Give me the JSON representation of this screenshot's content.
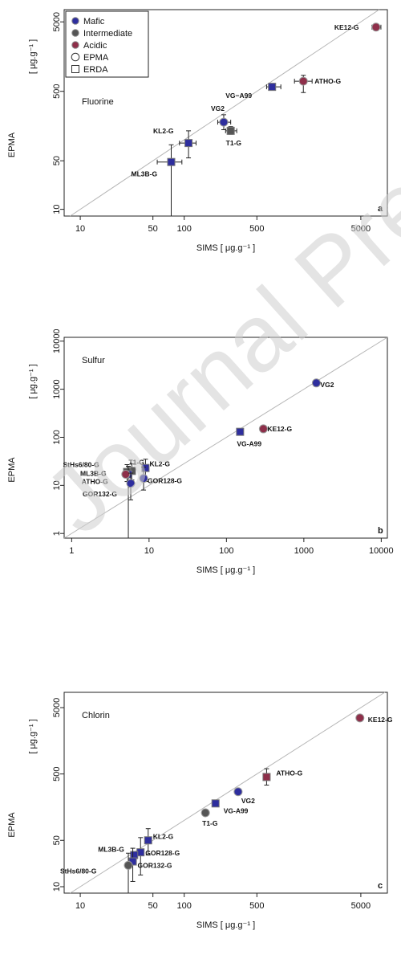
{
  "watermark": "Journal Pre-proof",
  "colors": {
    "mafic": "#2e2e9e",
    "intermediate": "#555555",
    "acidic": "#8e2f4a",
    "one_to_one_line": "#b5b5b5"
  },
  "legend": {
    "items": [
      {
        "label": "Mafic",
        "marker": "filled-circle",
        "color": "#2e2e9e"
      },
      {
        "label": "Intermediate",
        "marker": "filled-circle",
        "color": "#555555"
      },
      {
        "label": "Acidic",
        "marker": "filled-circle",
        "color": "#8e2f4a"
      },
      {
        "label": "EPMA",
        "marker": "open-circle",
        "color": "#333333"
      },
      {
        "label": "ERDA",
        "marker": "open-square",
        "color": "#333333"
      }
    ]
  },
  "chart_data": [
    {
      "type": "scatter",
      "title": "Fluorine",
      "panel_label": "a",
      "xlabel": "SIMS [ μg.g⁻¹ ]",
      "ylabel": "EPMA",
      "ylabel_unit": "[ μg.g⁻¹ ]",
      "xscale": "log",
      "yscale": "log",
      "xlim": [
        7,
        9000
      ],
      "ylim": [
        8,
        7500
      ],
      "xticks": [
        10,
        50,
        100,
        500,
        5000
      ],
      "yticks": [
        10,
        50,
        500,
        5000
      ],
      "reference_line": "1:1",
      "points": [
        {
          "label": "KE12-G",
          "x": 7000,
          "y": 4200,
          "group": "acidic",
          "method": "EPMA",
          "xerr": [
            6400,
            7800
          ],
          "yerr": [
            4000,
            4400
          ]
        },
        {
          "label": "ATHO-G",
          "x": 1400,
          "y": 700,
          "group": "acidic",
          "method": "EPMA",
          "xerr": [
            1150,
            1700
          ],
          "yerr": [
            480,
            850
          ]
        },
        {
          "label": "VG−A99",
          "x": 700,
          "y": 580,
          "group": "mafic",
          "method": "ERDA",
          "xerr": [
            620,
            850
          ],
          "yerr": [
            560,
            600
          ]
        },
        {
          "label": "VG2",
          "x": 240,
          "y": 180,
          "group": "mafic",
          "method": "EPMA",
          "xerr": [
            210,
            280
          ],
          "yerr": [
            140,
            230
          ]
        },
        {
          "label": "T1-G",
          "x": 280,
          "y": 135,
          "group": "intermediate",
          "method": "ERDA",
          "xerr": [
            250,
            320
          ],
          "yerr": [
            120,
            155
          ]
        },
        {
          "label": "KL2-G",
          "x": 110,
          "y": 90,
          "group": "mafic",
          "method": "ERDA",
          "xerr": [
            90,
            130
          ],
          "yerr": [
            55,
            135
          ]
        },
        {
          "label": "ML3B-G",
          "x": 75,
          "y": 48,
          "group": "mafic",
          "method": "ERDA",
          "xerr": [
            55,
            95
          ],
          "yerr": [
            8,
            85
          ]
        }
      ]
    },
    {
      "type": "scatter",
      "title": "Sulfur",
      "panel_label": "b",
      "xlabel": "SIMS [ μg.g⁻¹ ]",
      "ylabel": "EPMA",
      "ylabel_unit": "[ μg.g⁻¹ ]",
      "xscale": "log",
      "yscale": "log",
      "xlim": [
        0.8,
        12000
      ],
      "ylim": [
        0.8,
        12000
      ],
      "xticks": [
        1,
        10,
        100,
        1000,
        10000
      ],
      "yticks": [
        1,
        10,
        100,
        1000,
        10000
      ],
      "reference_line": "1:1",
      "points": [
        {
          "label": "VG2",
          "x": 1450,
          "y": 1350,
          "group": "mafic",
          "method": "EPMA"
        },
        {
          "label": "KE12-G",
          "x": 300,
          "y": 150,
          "group": "acidic",
          "method": "EPMA"
        },
        {
          "label": "VG-A99",
          "x": 150,
          "y": 130,
          "group": "mafic",
          "method": "ERDA"
        },
        {
          "label": "KL2-G",
          "x": 9,
          "y": 23,
          "group": "mafic",
          "method": "ERDA",
          "yerr": [
            12,
            35
          ]
        },
        {
          "label": "GOR128-G",
          "x": 8.5,
          "y": 14,
          "group": "mafic",
          "method": "EPMA",
          "yerr": [
            8,
            24
          ]
        },
        {
          "label": "T1-G",
          "x": 6,
          "y": 20,
          "group": "intermediate",
          "method": "ERDA",
          "yerr": [
            13,
            28
          ]
        },
        {
          "label": "StHs6/80-G",
          "x": 5.2,
          "y": 19,
          "group": "intermediate",
          "method": "ERDA",
          "yerr": [
            12,
            27
          ]
        },
        {
          "label": "ML3B-G",
          "x": 5.4,
          "y": 17,
          "group": "mafic",
          "method": "ERDA",
          "yerr": [
            0.8,
            25
          ]
        },
        {
          "label": "ATHO-G",
          "x": 5.0,
          "y": 17,
          "group": "acidic",
          "method": "EPMA"
        },
        {
          "label": "GOR132-G",
          "x": 5.8,
          "y": 11,
          "group": "mafic",
          "method": "EPMA",
          "yerr": [
            5,
            18
          ]
        }
      ]
    },
    {
      "type": "scatter",
      "title": "Chlorin",
      "panel_label": "c",
      "xlabel": "SIMS [ μg.g⁻¹ ]",
      "ylabel": "EPMA",
      "ylabel_unit": "[ μg.g⁻¹ ]",
      "xscale": "log",
      "yscale": "log",
      "xlim": [
        7,
        9000
      ],
      "ylim": [
        8,
        8500
      ],
      "xticks": [
        10,
        50,
        100,
        500,
        5000
      ],
      "yticks": [
        10,
        50,
        500,
        5000
      ],
      "reference_line": "1:1",
      "points": [
        {
          "label": "KE12-G",
          "x": 4900,
          "y": 3500,
          "group": "acidic",
          "method": "EPMA"
        },
        {
          "label": "ATHO-G",
          "x": 620,
          "y": 450,
          "group": "acidic",
          "method": "ERDA",
          "yerr": [
            340,
            600
          ]
        },
        {
          "label": "VG2",
          "x": 330,
          "y": 270,
          "group": "mafic",
          "method": "EPMA"
        },
        {
          "label": "VG-A99",
          "x": 200,
          "y": 180,
          "group": "mafic",
          "method": "ERDA"
        },
        {
          "label": "T1-G",
          "x": 160,
          "y": 130,
          "group": "intermediate",
          "method": "EPMA"
        },
        {
          "label": "KL2-G",
          "x": 45,
          "y": 50,
          "group": "mafic",
          "method": "ERDA",
          "yerr": [
            30,
            75
          ]
        },
        {
          "label": "GOR128-G",
          "x": 38,
          "y": 33,
          "group": "mafic",
          "method": "ERDA",
          "yerr": [
            15,
            55
          ]
        },
        {
          "label": "ML3B-G",
          "x": 33,
          "y": 30,
          "group": "mafic",
          "method": "ERDA"
        },
        {
          "label": "GOR132-G",
          "x": 32,
          "y": 24,
          "group": "mafic",
          "method": "ERDA",
          "yerr": [
            12,
            38
          ]
        },
        {
          "label": "StHs6/80-G",
          "x": 29,
          "y": 21,
          "group": "intermediate",
          "method": "EPMA",
          "yerr": [
            8,
            32
          ]
        }
      ]
    }
  ]
}
